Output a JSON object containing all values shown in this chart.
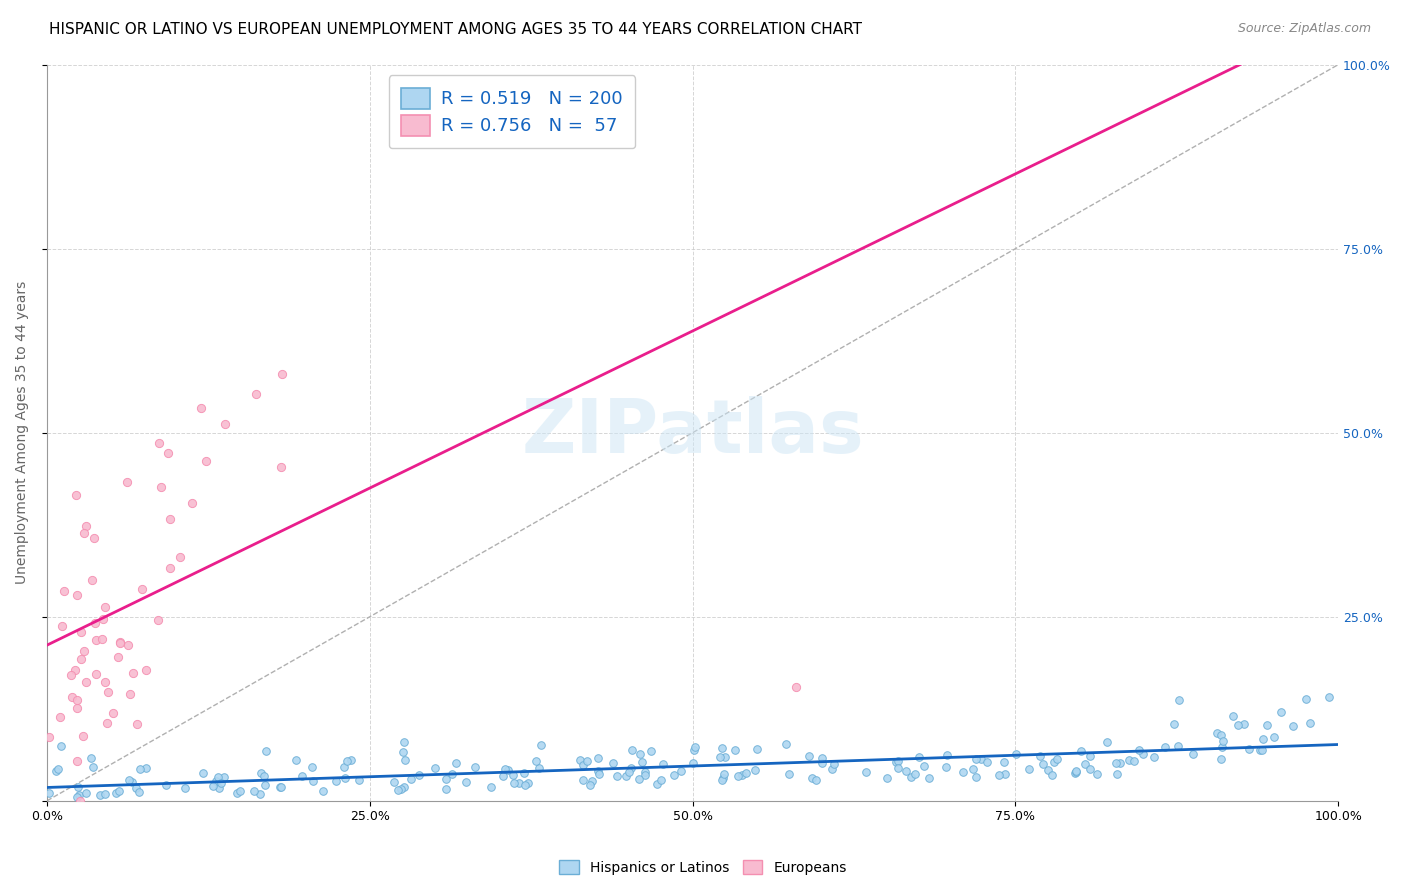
{
  "title": "HISPANIC OR LATINO VS EUROPEAN UNEMPLOYMENT AMONG AGES 35 TO 44 YEARS CORRELATION CHART",
  "source": "Source: ZipAtlas.com",
  "ylabel": "Unemployment Among Ages 35 to 44 years",
  "x_tick_labels": [
    "0.0%",
    "25.0%",
    "50.0%",
    "75.0%",
    "100.0%"
  ],
  "x_tick_vals": [
    0,
    0.25,
    0.5,
    0.75,
    1.0
  ],
  "y_tick_labels": [
    "25.0%",
    "50.0%",
    "75.0%",
    "100.0%"
  ],
  "y_tick_vals": [
    0.25,
    0.5,
    0.75,
    1.0
  ],
  "xlim": [
    0,
    1.0
  ],
  "ylim": [
    0,
    1.0
  ],
  "legend_labels": [
    "Hispanics or Latinos",
    "Europeans"
  ],
  "legend_R": [
    0.519,
    0.756
  ],
  "legend_N": [
    200,
    57
  ],
  "blue_color": "#6baed6",
  "pink_color": "#f48fb1",
  "blue_line_color": "#1565c0",
  "pink_line_color": "#e91e8c",
  "blue_marker_face": "#aed6f1",
  "pink_marker_face": "#f8bbd0",
  "title_fontsize": 11,
  "source_fontsize": 9,
  "axis_label_fontsize": 10,
  "tick_fontsize": 9,
  "legend_fontsize": 13,
  "grid_color": "#cccccc",
  "watermark": "ZIPatlas",
  "n_blue": 200,
  "n_pink": 57,
  "R_blue": 0.519,
  "R_pink": 0.756
}
